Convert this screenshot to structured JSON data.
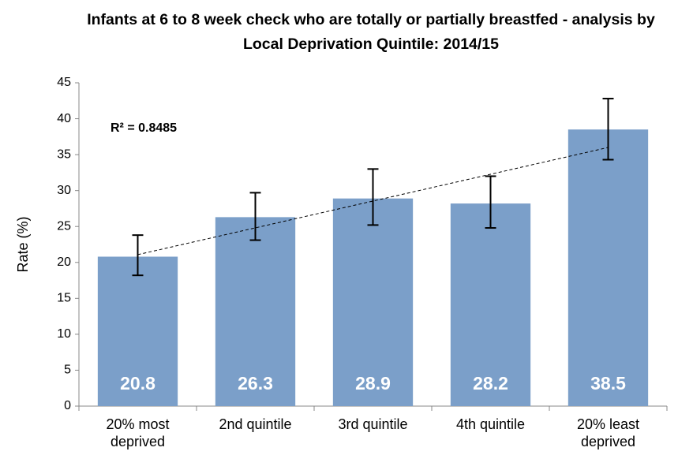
{
  "chart_data": {
    "type": "bar",
    "title": "Infants at 6 to 8 week check who are totally or partially breastfed - analysis by Local Deprivation Quintile: 2014/15",
    "ylabel": "Rate (%)",
    "categories": [
      "20% most deprived",
      "2nd quintile",
      "3rd quintile",
      "4th quintile",
      "20% least deprived"
    ],
    "values": [
      20.8,
      26.3,
      28.9,
      28.2,
      38.5
    ],
    "ci_lower": [
      18.2,
      23.1,
      25.2,
      24.8,
      34.3
    ],
    "ci_upper": [
      23.8,
      29.7,
      33.0,
      32.0,
      42.8
    ],
    "color": "#7b9fc9",
    "ylim": [
      0,
      45
    ],
    "yticks": [
      0,
      5,
      10,
      15,
      20,
      25,
      30,
      35,
      40,
      45
    ],
    "grid": false,
    "trendline": {
      "type": "linear",
      "annotation": "R² = 0.8485"
    }
  }
}
